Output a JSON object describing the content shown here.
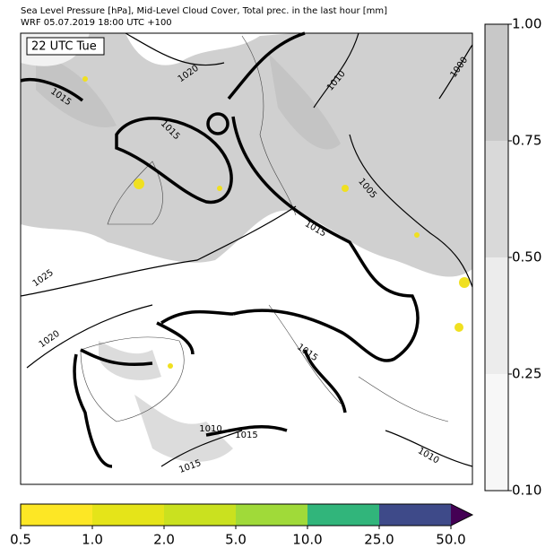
{
  "header": {
    "title": "Sea Level Pressure [hPa], Mid-Level Cloud Cover, Total prec. in the last hour [mm]",
    "subtitle": "WRF 05.07.2019 18:00 UTC +100"
  },
  "map": {
    "time_label": "22 UTC Tue",
    "contour_labels": [
      "1020",
      "1015",
      "1015",
      "1010",
      "1000",
      "1005",
      "1015",
      "1025",
      "1020",
      "1015",
      "1010",
      "1015",
      "1015",
      "1010"
    ]
  },
  "cloud_colorbar": {
    "colors": [
      "#f7f7f7",
      "#ececec",
      "#d9d9d9",
      "#c8c8c8"
    ],
    "ticks": [
      {
        "value": 0.1,
        "label": "0.10"
      },
      0.25,
      {
        "value": 0.5,
        "label": "0.50"
      },
      0.75,
      {
        "value": 1,
        "label": "1.00"
      }
    ]
  },
  "precip_colorbar": {
    "colors": [
      "#fde725",
      "#e5e419",
      "#cae11f",
      "#a0da39",
      "#31b57b",
      "#3e4a89",
      "#440154"
    ],
    "ticks": [
      0.5,
      {
        "value": 1,
        "label": "1.0"
      },
      {
        "value": 2,
        "label": "2.0"
      },
      {
        "value": 5,
        "label": "5.0"
      },
      {
        "value": 10,
        "label": "10.0"
      },
      {
        "value": 25,
        "label": "25.0"
      },
      {
        "value": 50,
        "label": "50.0"
      }
    ]
  }
}
